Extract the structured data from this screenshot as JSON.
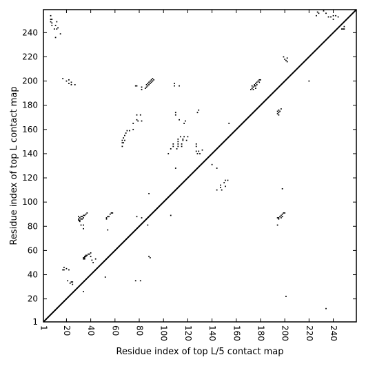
{
  "chart_data": {
    "type": "scatter",
    "xlabel": "Residue index of top L/5 contact map",
    "ylabel": "Residue index of top L contact map",
    "xlim": [
      1,
      259
    ],
    "ylim": [
      1,
      259
    ],
    "xticks": [
      1,
      20,
      40,
      60,
      80,
      100,
      120,
      140,
      160,
      180,
      200,
      220,
      240
    ],
    "yticks": [
      1,
      20,
      40,
      60,
      80,
      100,
      120,
      140,
      160,
      180,
      200,
      220,
      240
    ],
    "diagonal": true,
    "marker": "square",
    "marker_color": "#000000",
    "points": [
      [
        7,
        254
      ],
      [
        7,
        251
      ],
      [
        7,
        249
      ],
      [
        8,
        251
      ],
      [
        8,
        248
      ],
      [
        8,
        246
      ],
      [
        10,
        243
      ],
      [
        11,
        246
      ],
      [
        11,
        236
      ],
      [
        12,
        243
      ],
      [
        12,
        249
      ],
      [
        13,
        244
      ],
      [
        15,
        239
      ],
      [
        17,
        202
      ],
      [
        20,
        200
      ],
      [
        22,
        198
      ],
      [
        22,
        201
      ],
      [
        24,
        199
      ],
      [
        24,
        197
      ],
      [
        27,
        197
      ],
      [
        17,
        44
      ],
      [
        18,
        46
      ],
      [
        18,
        44
      ],
      [
        20,
        45
      ],
      [
        21,
        35
      ],
      [
        22,
        44
      ],
      [
        23,
        33
      ],
      [
        24,
        34
      ],
      [
        25,
        34
      ],
      [
        25,
        32
      ],
      [
        34,
        26
      ],
      [
        52,
        38
      ],
      [
        30,
        88
      ],
      [
        30,
        86
      ],
      [
        30,
        85
      ],
      [
        31,
        87
      ],
      [
        31,
        85
      ],
      [
        31,
        84
      ],
      [
        32,
        88
      ],
      [
        32,
        86
      ],
      [
        32,
        81
      ],
      [
        33,
        88
      ],
      [
        33,
        86
      ],
      [
        34,
        89
      ],
      [
        34,
        87
      ],
      [
        34,
        81
      ],
      [
        34,
        78
      ],
      [
        35,
        89
      ],
      [
        36,
        90
      ],
      [
        37,
        91
      ],
      [
        34,
        54
      ],
      [
        34,
        53
      ],
      [
        35,
        55
      ],
      [
        35,
        54
      ],
      [
        35,
        53
      ],
      [
        36,
        56
      ],
      [
        36,
        55
      ],
      [
        37,
        56
      ],
      [
        38,
        57
      ],
      [
        39,
        57
      ],
      [
        40,
        58
      ],
      [
        40,
        55
      ],
      [
        41,
        52
      ],
      [
        42,
        50
      ],
      [
        44,
        53
      ],
      [
        53,
        86
      ],
      [
        53,
        87
      ],
      [
        54,
        88
      ],
      [
        54,
        77
      ],
      [
        55,
        88
      ],
      [
        56,
        90
      ],
      [
        57,
        91
      ],
      [
        58,
        91
      ],
      [
        66,
        146
      ],
      [
        66,
        149
      ],
      [
        66,
        151
      ],
      [
        67,
        153
      ],
      [
        67,
        149
      ],
      [
        68,
        155
      ],
      [
        68,
        151
      ],
      [
        69,
        157
      ],
      [
        70,
        159
      ],
      [
        72,
        159
      ],
      [
        75,
        160
      ],
      [
        75,
        165
      ],
      [
        78,
        168
      ],
      [
        78,
        172
      ],
      [
        79,
        167
      ],
      [
        81,
        172
      ],
      [
        82,
        167
      ],
      [
        77,
        196
      ],
      [
        78,
        196
      ],
      [
        82,
        195
      ],
      [
        82,
        193
      ],
      [
        85,
        194
      ],
      [
        86,
        195
      ],
      [
        86,
        197
      ],
      [
        87,
        196
      ],
      [
        87,
        198
      ],
      [
        88,
        197
      ],
      [
        88,
        199
      ],
      [
        89,
        198
      ],
      [
        89,
        200
      ],
      [
        90,
        199
      ],
      [
        90,
        201
      ],
      [
        91,
        200
      ],
      [
        91,
        202
      ],
      [
        92,
        201
      ],
      [
        78,
        88
      ],
      [
        82,
        87
      ],
      [
        77,
        35
      ],
      [
        81,
        35
      ],
      [
        87,
        81
      ],
      [
        88,
        107
      ],
      [
        88,
        55
      ],
      [
        89,
        54
      ],
      [
        106,
        89
      ],
      [
        104,
        140
      ],
      [
        106,
        144
      ],
      [
        108,
        146
      ],
      [
        108,
        148
      ],
      [
        109,
        198
      ],
      [
        109,
        196
      ],
      [
        110,
        174
      ],
      [
        110,
        172
      ],
      [
        110,
        128
      ],
      [
        111,
        144
      ],
      [
        112,
        152
      ],
      [
        112,
        150
      ],
      [
        112,
        148
      ],
      [
        112,
        146
      ],
      [
        113,
        196
      ],
      [
        113,
        168
      ],
      [
        114,
        154
      ],
      [
        115,
        148
      ],
      [
        115,
        146
      ],
      [
        116,
        151
      ],
      [
        116,
        152
      ],
      [
        117,
        154
      ],
      [
        117,
        165
      ],
      [
        118,
        167
      ],
      [
        119,
        151
      ],
      [
        120,
        154
      ],
      [
        127,
        146
      ],
      [
        127,
        148
      ],
      [
        127,
        142
      ],
      [
        128,
        140
      ],
      [
        128,
        174
      ],
      [
        129,
        176
      ],
      [
        129,
        142
      ],
      [
        130,
        140
      ],
      [
        132,
        143
      ],
      [
        140,
        131
      ],
      [
        144,
        128
      ],
      [
        144,
        110
      ],
      [
        147,
        112
      ],
      [
        147,
        114
      ],
      [
        148,
        110
      ],
      [
        150,
        116
      ],
      [
        151,
        118
      ],
      [
        151,
        113
      ],
      [
        153,
        118
      ],
      [
        154,
        165
      ],
      [
        172,
        193
      ],
      [
        173,
        194
      ],
      [
        173,
        196
      ],
      [
        174,
        195
      ],
      [
        174,
        193
      ],
      [
        175,
        197
      ],
      [
        175,
        196
      ],
      [
        176,
        198
      ],
      [
        176,
        196
      ],
      [
        176,
        194
      ],
      [
        177,
        199
      ],
      [
        177,
        197
      ],
      [
        178,
        200
      ],
      [
        179,
        199
      ],
      [
        179,
        201
      ],
      [
        180,
        201
      ],
      [
        194,
        173
      ],
      [
        194,
        175
      ],
      [
        195,
        172
      ],
      [
        195,
        174
      ],
      [
        195,
        176
      ],
      [
        196,
        175
      ],
      [
        197,
        177
      ],
      [
        194,
        81
      ],
      [
        194,
        87
      ],
      [
        195,
        86
      ],
      [
        195,
        87
      ],
      [
        196,
        88
      ],
      [
        197,
        87
      ],
      [
        197,
        89
      ],
      [
        198,
        88
      ],
      [
        198,
        90
      ],
      [
        199,
        91
      ],
      [
        200,
        91
      ],
      [
        198,
        111
      ],
      [
        201,
        22
      ],
      [
        199,
        220
      ],
      [
        200,
        218
      ],
      [
        201,
        217
      ],
      [
        202,
        216
      ],
      [
        202,
        219
      ],
      [
        220,
        200
      ],
      [
        234,
        12
      ],
      [
        226,
        254
      ],
      [
        227,
        257
      ],
      [
        228,
        256
      ],
      [
        232,
        258
      ],
      [
        234,
        256
      ],
      [
        236,
        253
      ],
      [
        238,
        253
      ],
      [
        240,
        254
      ],
      [
        240,
        251
      ],
      [
        242,
        254
      ],
      [
        244,
        253
      ],
      [
        247,
        243
      ],
      [
        248,
        243
      ],
      [
        249,
        245
      ],
      [
        249,
        243
      ]
    ]
  }
}
